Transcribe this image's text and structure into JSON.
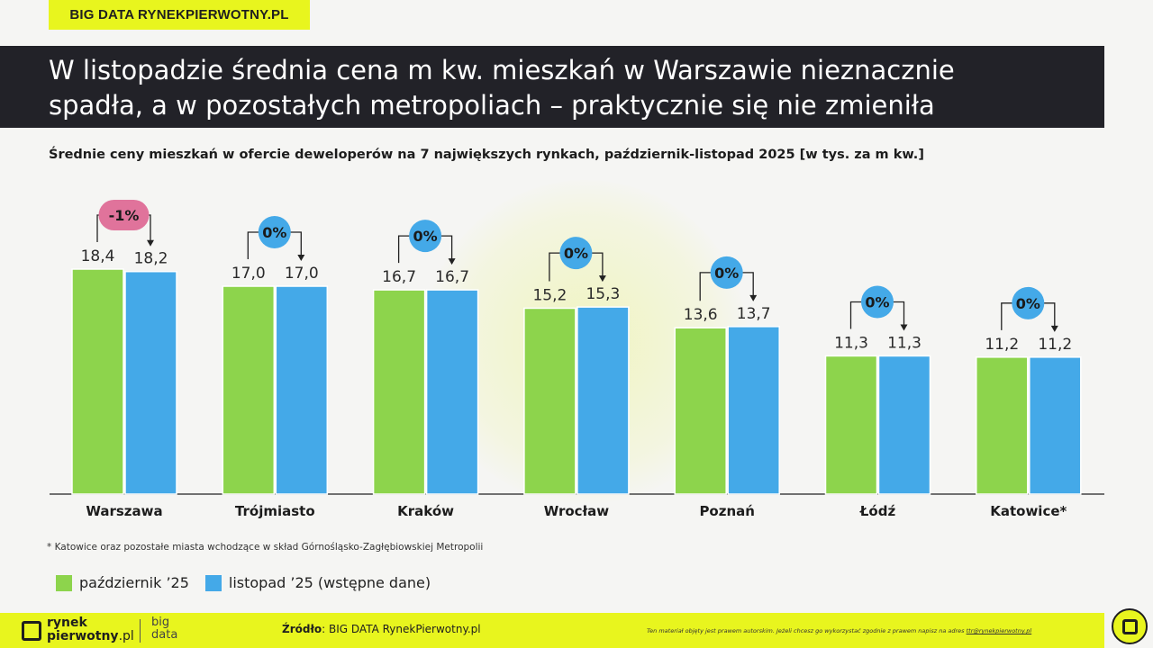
{
  "brand_tag": "BIG DATA RYNEKPIERWOTNY.PL",
  "title_line1": "W listopadzie średnia cena m kw. mieszkań w Warszawie nieznacznie",
  "title_line2": "spadła, a w pozostałych metropoliach – praktycznie się nie zmieniła",
  "subtitle": "Średnie ceny mieszkań w ofercie deweloperów na 7 największych rynkach, październik-listopad 2025 [w tys. za m kw.]",
  "footnote": "* Katowice oraz pozostałe miasta wchodzące w skład Górnośląsko-Zagłębiowskiej Metropolii",
  "legend": {
    "series1": "październik  ’25",
    "series2": "listopad ’25 (wstępne dane)"
  },
  "colors": {
    "series1": "#8dd44c",
    "series2": "#44a9e8",
    "badge_neutral": "#44a9e8",
    "badge_negative": "#e0739b",
    "accent": "#e8f51e"
  },
  "chart_data": {
    "type": "bar",
    "categories": [
      "Warszawa",
      "Trójmiasto",
      "Kraków",
      "Wrocław",
      "Poznań",
      "Łódź",
      "Katowice*"
    ],
    "series": [
      {
        "name": "październik  ’25",
        "values": [
          18.4,
          17.0,
          16.7,
          15.2,
          13.6,
          11.3,
          11.2
        ],
        "labels": [
          "18,4",
          "17,0",
          "16,7",
          "15,2",
          "13,6",
          "11,3",
          "11,2"
        ]
      },
      {
        "name": "listopad ’25 (wstępne dane)",
        "values": [
          18.2,
          17.0,
          16.7,
          15.3,
          13.7,
          11.3,
          11.2
        ],
        "labels": [
          "18,2",
          "17,0",
          "16,7",
          "15,3",
          "13,7",
          "11,3",
          "11,2"
        ]
      }
    ],
    "changes": [
      "-1%",
      "0%",
      "0%",
      "0%",
      "0%",
      "0%",
      "0%"
    ],
    "ylim": [
      0,
      18.4
    ],
    "grid": false
  },
  "footer": {
    "logo_line1": "rynek",
    "logo_line2": "pierwotny",
    "logo_suffix": ".pl",
    "logo_big_line1": "big",
    "logo_big_line2": "data",
    "source_label": "Źródło",
    "source_text": ": BIG DATA RynekPierwotny.pl",
    "copyright": "Ten materiał objęty jest prawem autorskim. Jeżeli chcesz go wykorzystać zgodnie z prawem napisz na adres ",
    "copyright_email": "ttr@rynekpierwotny.pl"
  }
}
